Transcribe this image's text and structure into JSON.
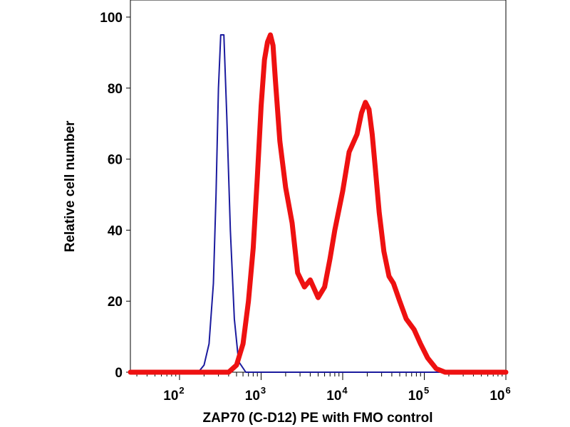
{
  "chart_data": {
    "type": "line",
    "title": "",
    "xlabel": "ZAP70 (C-D12) PE with FMO control",
    "ylabel": "Relative cell number",
    "x_scale": "log",
    "xlim": [
      25,
      1000000
    ],
    "ylim": [
      0,
      100
    ],
    "grid": false,
    "x_ticks": [
      {
        "base": "10",
        "exp": "2",
        "value": 100
      },
      {
        "base": "10",
        "exp": "3",
        "value": 1000
      },
      {
        "base": "10",
        "exp": "4",
        "value": 10000
      },
      {
        "base": "10",
        "exp": "5",
        "value": 100000
      },
      {
        "base": "10",
        "exp": "6",
        "value": 1000000
      }
    ],
    "y_ticks": [
      0,
      20,
      40,
      60,
      80,
      100
    ],
    "series": [
      {
        "color": "#1a1a9e",
        "line_width": 2,
        "x": [
          25,
          170,
          200,
          230,
          260,
          280,
          300,
          320,
          350,
          380,
          420,
          470,
          530,
          650,
          1000000
        ],
        "y": [
          0,
          0,
          2,
          8,
          25,
          50,
          80,
          95,
          95,
          72,
          40,
          15,
          3,
          0,
          0
        ]
      },
      {
        "color": "#ee1111",
        "line_width": 7,
        "x": [
          25,
          400,
          500,
          600,
          700,
          800,
          900,
          1000,
          1100,
          1200,
          1300,
          1400,
          1500,
          1700,
          2000,
          2400,
          2800,
          3400,
          4000,
          5000,
          6000,
          7000,
          8000,
          10000,
          12000,
          15000,
          17000,
          19000,
          21000,
          23000,
          25000,
          28000,
          32000,
          37000,
          42000,
          50000,
          60000,
          75000,
          90000,
          110000,
          140000,
          180000,
          230000,
          1000000
        ],
        "y": [
          0,
          0,
          2,
          8,
          20,
          35,
          55,
          75,
          88,
          93,
          95,
          92,
          82,
          65,
          52,
          42,
          28,
          24,
          26,
          21,
          24,
          32,
          40,
          51,
          62,
          67,
          73,
          76,
          74,
          67,
          58,
          45,
          34,
          27,
          25,
          20,
          15,
          12,
          8,
          4,
          1,
          0,
          0,
          0
        ]
      }
    ]
  }
}
